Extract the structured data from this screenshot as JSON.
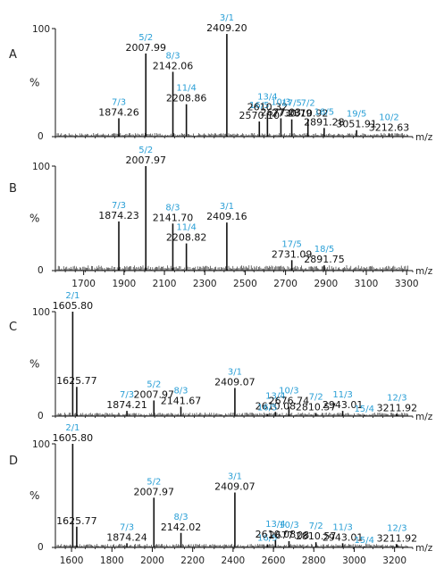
{
  "colors": {
    "axis": "#111111",
    "peak": "#111111",
    "charge_label": "#2a9fd6",
    "mass_label": "#111111",
    "leader": "#2a9fd6"
  },
  "chart_data": [
    {
      "panel": "A",
      "type": "bar",
      "ylabel": "%",
      "y_ticks": [
        "100",
        "0"
      ],
      "axis_label": "m/z",
      "xlim": [
        1560,
        3330
      ],
      "x_ticks": [],
      "ylim": [
        0,
        100
      ],
      "peaks": [
        {
          "x": 1874.26,
          "y": 17,
          "charge": "7/3",
          "mass": "1874.26"
        },
        {
          "x": 2007.99,
          "y": 77,
          "charge": "5/2",
          "mass": "2007.99"
        },
        {
          "x": 2142.06,
          "y": 60,
          "charge": "8/3",
          "mass": "2142.06"
        },
        {
          "x": 2208.86,
          "y": 30,
          "charge": "11/4",
          "mass": "2208.86"
        },
        {
          "x": 2409.2,
          "y": 95,
          "charge": "3/1",
          "mass": "2409.20"
        },
        {
          "x": 2570.1,
          "y": 14,
          "charge": "16/5",
          "mass": "2570.10"
        },
        {
          "x": 2610.32,
          "y": 22,
          "charge": "13/4",
          "mass": "2610.32"
        },
        {
          "x": 2677.03,
          "y": 17,
          "charge": "10/3",
          "mass": "2677.03"
        },
        {
          "x": 2730.79,
          "y": 16,
          "charge": "17/5",
          "mass": "2730.79"
        },
        {
          "x": 2810.92,
          "y": 16,
          "charge": "7/2",
          "mass": "2810.92"
        },
        {
          "x": 2891.28,
          "y": 8,
          "charge": "18/5",
          "mass": "2891.28"
        },
        {
          "x": 3051.91,
          "y": 6,
          "charge": "19/5",
          "mass": "3051.91"
        },
        {
          "x": 3212.63,
          "y": 3,
          "charge": "10/2",
          "mass": "3212.63"
        }
      ]
    },
    {
      "panel": "B",
      "type": "bar",
      "ylabel": "%",
      "y_ticks": [
        "100",
        "0"
      ],
      "axis_label": "m/z",
      "xlim": [
        1560,
        3330
      ],
      "x_ticks": [
        1700,
        1900,
        2100,
        2300,
        2500,
        2700,
        2900,
        3100,
        3300
      ],
      "ylim": [
        0,
        100
      ],
      "peaks": [
        {
          "x": 1874.23,
          "y": 47,
          "charge": "7/3",
          "mass": "1874.23"
        },
        {
          "x": 2007.97,
          "y": 100,
          "charge": "5/2",
          "mass": "2007.97"
        },
        {
          "x": 2141.7,
          "y": 45,
          "charge": "8/3",
          "mass": "2141.70"
        },
        {
          "x": 2208.82,
          "y": 26,
          "charge": "11/4",
          "mass": "2208.82"
        },
        {
          "x": 2409.16,
          "y": 46,
          "charge": "3/1",
          "mass": "2409.16"
        },
        {
          "x": 2731.09,
          "y": 10,
          "charge": "17/5",
          "mass": "2731.09"
        },
        {
          "x": 2891.75,
          "y": 5,
          "charge": "18/5",
          "mass": "2891.75"
        }
      ]
    },
    {
      "panel": "C",
      "type": "bar",
      "ylabel": "%",
      "y_ticks": [
        "100",
        "0"
      ],
      "axis_label": "m/z",
      "xlim": [
        1520,
        3290
      ],
      "x_ticks": [],
      "ylim": [
        0,
        100
      ],
      "peaks": [
        {
          "x": 1605.8,
          "y": 100,
          "charge": "2/1",
          "mass": "1605.80"
        },
        {
          "x": 1625.77,
          "y": 28,
          "charge": "",
          "mass": "1625.77"
        },
        {
          "x": 1874.21,
          "y": 5,
          "charge": "7/3",
          "mass": "1874.21"
        },
        {
          "x": 2007.97,
          "y": 15,
          "charge": "5/2",
          "mass": "2007.97"
        },
        {
          "x": 2141.67,
          "y": 9,
          "charge": "8/3",
          "mass": "2141.67"
        },
        {
          "x": 2409.07,
          "y": 27,
          "charge": "3/1",
          "mass": "2409.07"
        },
        {
          "x": 2610.08,
          "y": 4,
          "charge": "13/4",
          "mass": "2610.08"
        },
        {
          "x": 2570.0,
          "y": 2,
          "charge": "16/5",
          "mass": ""
        },
        {
          "x": 2676.74,
          "y": 9,
          "charge": "10/3",
          "mass": "2676.74"
        },
        {
          "x": 2810.57,
          "y": 3,
          "charge": "7/2",
          "mass": "2810.57"
        },
        {
          "x": 2943.01,
          "y": 5,
          "charge": "11/3",
          "mass": "2943.01"
        },
        {
          "x": 3050.0,
          "y": 1,
          "charge": "15/4",
          "mass": ""
        },
        {
          "x": 3211.92,
          "y": 2,
          "charge": "12/3",
          "mass": "3211.92"
        }
      ]
    },
    {
      "panel": "D",
      "type": "bar",
      "ylabel": "%",
      "y_ticks": [
        "100",
        "0"
      ],
      "axis_label": "m/z",
      "xlim": [
        1520,
        3290
      ],
      "x_ticks": [
        1600,
        1800,
        2000,
        2200,
        2400,
        2600,
        2800,
        3000,
        3200
      ],
      "ylim": [
        0,
        100
      ],
      "peaks": [
        {
          "x": 1605.8,
          "y": 100,
          "charge": "2/1",
          "mass": "1605.80"
        },
        {
          "x": 1625.77,
          "y": 20,
          "charge": "",
          "mass": "1625.77"
        },
        {
          "x": 1874.24,
          "y": 4,
          "charge": "7/3",
          "mass": "1874.24"
        },
        {
          "x": 2007.97,
          "y": 48,
          "charge": "5/2",
          "mass": "2007.97"
        },
        {
          "x": 2142.02,
          "y": 14,
          "charge": "8/3",
          "mass": "2142.02"
        },
        {
          "x": 2409.07,
          "y": 53,
          "charge": "3/1",
          "mass": "2409.07"
        },
        {
          "x": 2570.0,
          "y": 3,
          "charge": "16/5",
          "mass": ""
        },
        {
          "x": 2610.08,
          "y": 7,
          "charge": "13/4",
          "mass": "2610.08"
        },
        {
          "x": 2677.08,
          "y": 6,
          "charge": "10/3",
          "mass": "2677.08"
        },
        {
          "x": 2810.57,
          "y": 5,
          "charge": "7/2",
          "mass": "2810.57"
        },
        {
          "x": 2943.01,
          "y": 4,
          "charge": "11/3",
          "mass": "2943.01"
        },
        {
          "x": 3050.0,
          "y": 1,
          "charge": "15/4",
          "mass": ""
        },
        {
          "x": 3211.92,
          "y": 3,
          "charge": "12/3",
          "mass": "3211.92"
        }
      ]
    }
  ]
}
